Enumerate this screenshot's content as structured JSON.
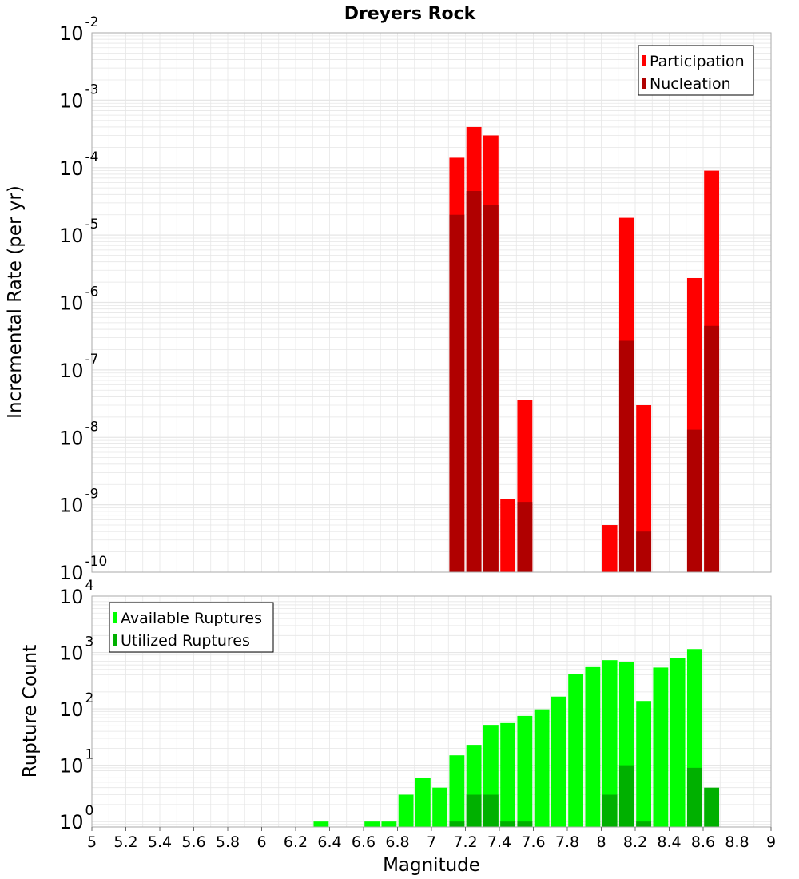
{
  "title": "Dreyers Rock",
  "colors": {
    "participation": "#ff0000",
    "nucleation": "#b00000",
    "available": "#00ff00",
    "utilized": "#00b000",
    "grid": "#e6e6e6",
    "frame": "#aaaaaa"
  },
  "chart_data": [
    {
      "type": "bar",
      "title": "Dreyers Rock",
      "xlabel": "Magnitude",
      "ylabel": "Incremental Rate (per yr)",
      "y_scale": "log",
      "xlim": [
        5,
        9
      ],
      "ylim": [
        1e-10,
        0.01
      ],
      "bar_width": 0.1,
      "grid": true,
      "legend_position": "top-right",
      "series": [
        {
          "name": "Participation",
          "points": [
            {
              "x": 7.15,
              "y": 0.00014
            },
            {
              "x": 7.25,
              "y": 0.0004
            },
            {
              "x": 7.35,
              "y": 0.0003
            },
            {
              "x": 7.45,
              "y": 1.2e-09
            },
            {
              "x": 7.55,
              "y": 3.6e-08
            },
            {
              "x": 8.05,
              "y": 5e-10
            },
            {
              "x": 8.15,
              "y": 1.8e-05
            },
            {
              "x": 8.25,
              "y": 3e-08
            },
            {
              "x": 8.55,
              "y": 2.3e-06
            },
            {
              "x": 8.65,
              "y": 9e-05
            }
          ]
        },
        {
          "name": "Nucleation",
          "points": [
            {
              "x": 7.15,
              "y": 2e-05
            },
            {
              "x": 7.25,
              "y": 4.5e-05
            },
            {
              "x": 7.35,
              "y": 2.8e-05
            },
            {
              "x": 7.55,
              "y": 1.1e-09
            },
            {
              "x": 8.15,
              "y": 2.7e-07
            },
            {
              "x": 8.25,
              "y": 4e-10
            },
            {
              "x": 8.55,
              "y": 1.3e-08
            },
            {
              "x": 8.65,
              "y": 4.5e-07
            }
          ]
        }
      ]
    },
    {
      "type": "bar",
      "xlabel": "Magnitude",
      "ylabel": "Rupture Count",
      "y_scale": "log",
      "xlim": [
        5,
        9
      ],
      "ylim": [
        0.8,
        10000
      ],
      "bar_width": 0.1,
      "grid": true,
      "legend_position": "top-left",
      "x_tick_labels": [
        "5",
        "5.2",
        "5.4",
        "5.6",
        "5.8",
        "6",
        "6.2",
        "6.4",
        "6.6",
        "6.8",
        "7",
        "7.2",
        "7.4",
        "7.6",
        "7.8",
        "8",
        "8.2",
        "8.4",
        "8.6",
        "8.8",
        "9"
      ],
      "series": [
        {
          "name": "Available Ruptures",
          "points": [
            {
              "x": 6.35,
              "y": 1
            },
            {
              "x": 6.65,
              "y": 1
            },
            {
              "x": 6.75,
              "y": 1
            },
            {
              "x": 6.85,
              "y": 3
            },
            {
              "x": 6.95,
              "y": 6
            },
            {
              "x": 7.05,
              "y": 4
            },
            {
              "x": 7.15,
              "y": 15
            },
            {
              "x": 7.25,
              "y": 23
            },
            {
              "x": 7.35,
              "y": 52
            },
            {
              "x": 7.45,
              "y": 56
            },
            {
              "x": 7.55,
              "y": 75
            },
            {
              "x": 7.65,
              "y": 98
            },
            {
              "x": 7.75,
              "y": 165
            },
            {
              "x": 7.85,
              "y": 410
            },
            {
              "x": 7.95,
              "y": 550
            },
            {
              "x": 8.05,
              "y": 730
            },
            {
              "x": 8.15,
              "y": 670
            },
            {
              "x": 8.25,
              "y": 138
            },
            {
              "x": 8.35,
              "y": 540
            },
            {
              "x": 8.45,
              "y": 810
            },
            {
              "x": 8.55,
              "y": 1150
            }
          ]
        },
        {
          "name": "Utilized Ruptures",
          "points": [
            {
              "x": 7.15,
              "y": 1
            },
            {
              "x": 7.25,
              "y": 3
            },
            {
              "x": 7.35,
              "y": 3
            },
            {
              "x": 7.45,
              "y": 1
            },
            {
              "x": 7.55,
              "y": 1
            },
            {
              "x": 8.05,
              "y": 3
            },
            {
              "x": 8.15,
              "y": 10
            },
            {
              "x": 8.25,
              "y": 1
            },
            {
              "x": 8.55,
              "y": 9
            },
            {
              "x": 8.65,
              "y": 4
            }
          ]
        }
      ]
    }
  ]
}
